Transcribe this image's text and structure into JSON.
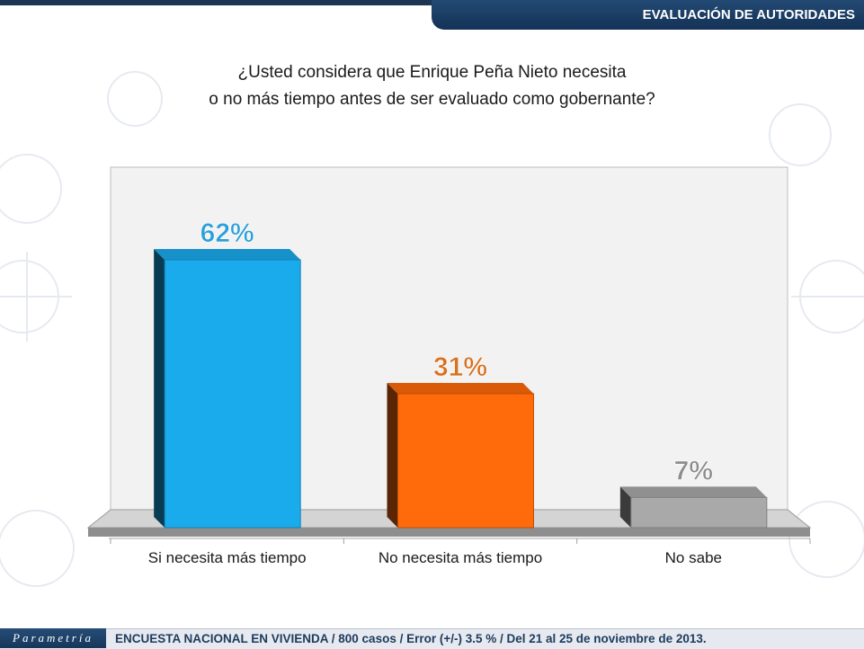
{
  "header": {
    "section_title": "EVALUACIÓN DE AUTORIDADES"
  },
  "question": {
    "line1": "¿Usted considera que Enrique Peña Nieto necesita",
    "line2": "o no más tiempo antes de ser evaluado como gobernante?"
  },
  "chart_data": {
    "type": "bar",
    "categories": [
      "Si necesita más tiempo",
      "No necesita más tiempo",
      "No sabe"
    ],
    "values": [
      62,
      31,
      7
    ],
    "value_labels": [
      "62%",
      "31%",
      "7%"
    ],
    "colors": [
      "#1aabec",
      "#ff6a0a",
      "#a9a9a9"
    ],
    "label_colors": [
      "#2a9fd8",
      "#d8701e",
      "#8c8c8c"
    ],
    "ylim": [
      0,
      70
    ],
    "grid": false,
    "legend": "none",
    "style": "3d-columns"
  },
  "footer": {
    "brand": "Parametría",
    "note": "ENCUESTA NACIONAL EN VIVIENDA / 800 casos / Error (+/-) 3.5 % / Del 21 al 25 de noviembre de 2013."
  }
}
